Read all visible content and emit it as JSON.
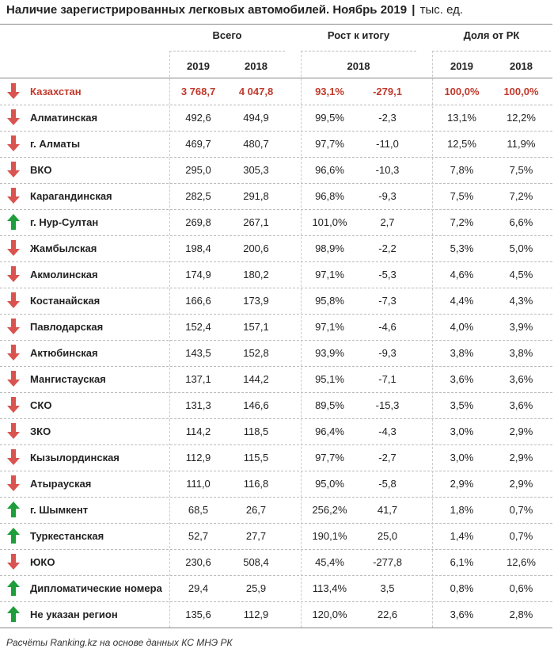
{
  "title": "Наличие зарегистрированных легковых автомобилей. Ноябрь 2019",
  "title_sep": "|",
  "title_unit": "тыс. ед.",
  "headers": {
    "total": "Всего",
    "growth": "Рост к итогу",
    "share": "Доля от РК"
  },
  "years": {
    "total_a": "2019",
    "total_b": "2018",
    "growth": "2018",
    "share_a": "2019",
    "share_b": "2018"
  },
  "colors": {
    "down": "#d9534f",
    "up": "#1e9e3a",
    "total_text": "#c0392b"
  },
  "rows": [
    {
      "name": "Казахстан",
      "trend": "down",
      "v2019": "3 768,7",
      "v2018": "4 047,8",
      "growth_pct": "93,1%",
      "growth_abs": "-279,1",
      "share2019": "100,0%",
      "share2018": "100,0%"
    },
    {
      "name": "Алматинская",
      "trend": "down",
      "v2019": "492,6",
      "v2018": "494,9",
      "growth_pct": "99,5%",
      "growth_abs": "-2,3",
      "share2019": "13,1%",
      "share2018": "12,2%"
    },
    {
      "name": "г. Алматы",
      "trend": "down",
      "v2019": "469,7",
      "v2018": "480,7",
      "growth_pct": "97,7%",
      "growth_abs": "-11,0",
      "share2019": "12,5%",
      "share2018": "11,9%"
    },
    {
      "name": "ВКО",
      "trend": "down",
      "v2019": "295,0",
      "v2018": "305,3",
      "growth_pct": "96,6%",
      "growth_abs": "-10,3",
      "share2019": "7,8%",
      "share2018": "7,5%"
    },
    {
      "name": "Карагандинская",
      "trend": "down",
      "v2019": "282,5",
      "v2018": "291,8",
      "growth_pct": "96,8%",
      "growth_abs": "-9,3",
      "share2019": "7,5%",
      "share2018": "7,2%"
    },
    {
      "name": "г. Нур-Султан",
      "trend": "up",
      "v2019": "269,8",
      "v2018": "267,1",
      "growth_pct": "101,0%",
      "growth_abs": "2,7",
      "share2019": "7,2%",
      "share2018": "6,6%"
    },
    {
      "name": "Жамбылская",
      "trend": "down",
      "v2019": "198,4",
      "v2018": "200,6",
      "growth_pct": "98,9%",
      "growth_abs": "-2,2",
      "share2019": "5,3%",
      "share2018": "5,0%"
    },
    {
      "name": "Акмолинская",
      "trend": "down",
      "v2019": "174,9",
      "v2018": "180,2",
      "growth_pct": "97,1%",
      "growth_abs": "-5,3",
      "share2019": "4,6%",
      "share2018": "4,5%"
    },
    {
      "name": "Костанайская",
      "trend": "down",
      "v2019": "166,6",
      "v2018": "173,9",
      "growth_pct": "95,8%",
      "growth_abs": "-7,3",
      "share2019": "4,4%",
      "share2018": "4,3%"
    },
    {
      "name": "Павлодарская",
      "trend": "down",
      "v2019": "152,4",
      "v2018": "157,1",
      "growth_pct": "97,1%",
      "growth_abs": "-4,6",
      "share2019": "4,0%",
      "share2018": "3,9%"
    },
    {
      "name": "Актюбинская",
      "trend": "down",
      "v2019": "143,5",
      "v2018": "152,8",
      "growth_pct": "93,9%",
      "growth_abs": "-9,3",
      "share2019": "3,8%",
      "share2018": "3,8%"
    },
    {
      "name": "Мангистауская",
      "trend": "down",
      "v2019": "137,1",
      "v2018": "144,2",
      "growth_pct": "95,1%",
      "growth_abs": "-7,1",
      "share2019": "3,6%",
      "share2018": "3,6%"
    },
    {
      "name": "СКО",
      "trend": "down",
      "v2019": "131,3",
      "v2018": "146,6",
      "growth_pct": "89,5%",
      "growth_abs": "-15,3",
      "share2019": "3,5%",
      "share2018": "3,6%"
    },
    {
      "name": "ЗКО",
      "trend": "down",
      "v2019": "114,2",
      "v2018": "118,5",
      "growth_pct": "96,4%",
      "growth_abs": "-4,3",
      "share2019": "3,0%",
      "share2018": "2,9%"
    },
    {
      "name": "Кызылординская",
      "trend": "down",
      "v2019": "112,9",
      "v2018": "115,5",
      "growth_pct": "97,7%",
      "growth_abs": "-2,7",
      "share2019": "3,0%",
      "share2018": "2,9%"
    },
    {
      "name": "Атырауская",
      "trend": "down",
      "v2019": "111,0",
      "v2018": "116,8",
      "growth_pct": "95,0%",
      "growth_abs": "-5,8",
      "share2019": "2,9%",
      "share2018": "2,9%"
    },
    {
      "name": "г. Шымкент",
      "trend": "up",
      "v2019": "68,5",
      "v2018": "26,7",
      "growth_pct": "256,2%",
      "growth_abs": "41,7",
      "share2019": "1,8%",
      "share2018": "0,7%"
    },
    {
      "name": "Туркестанская",
      "trend": "up",
      "v2019": "52,7",
      "v2018": "27,7",
      "growth_pct": "190,1%",
      "growth_abs": "25,0",
      "share2019": "1,4%",
      "share2018": "0,7%"
    },
    {
      "name": "ЮКО",
      "trend": "down",
      "v2019": "230,6",
      "v2018": "508,4",
      "growth_pct": "45,4%",
      "growth_abs": "-277,8",
      "share2019": "6,1%",
      "share2018": "12,6%"
    },
    {
      "name": "Дипломатические номера",
      "trend": "up",
      "v2019": "29,4",
      "v2018": "25,9",
      "growth_pct": "113,4%",
      "growth_abs": "3,5",
      "share2019": "0,8%",
      "share2018": "0,6%"
    },
    {
      "name": "Не указан регион",
      "trend": "up",
      "v2019": "135,6",
      "v2018": "112,9",
      "growth_pct": "120,0%",
      "growth_abs": "22,6",
      "share2019": "3,6%",
      "share2018": "2,8%"
    }
  ],
  "footer": "Расчёты Ranking.kz на основе данных КС МНЭ РК"
}
